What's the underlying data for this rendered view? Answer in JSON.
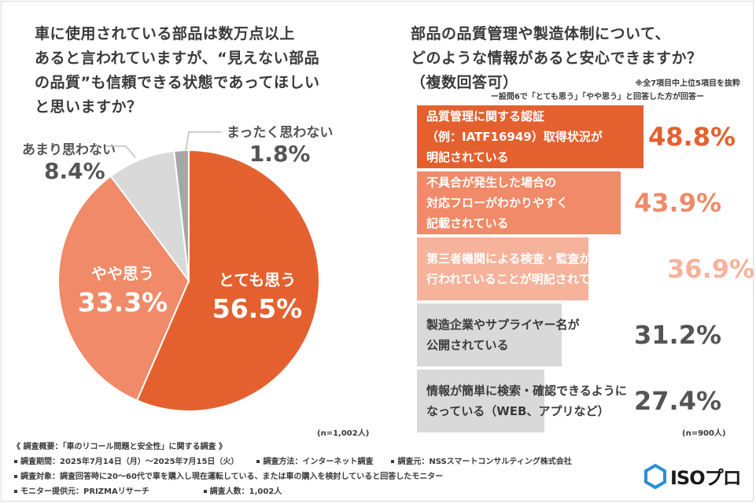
{
  "left_question": {
    "lines": [
      "車に使用されている部品は数万点以上",
      "あると言われていますが、“見えない部品",
      "の品質”も信頼できる状態であってほしい",
      "と思いますか？"
    ]
  },
  "right_question": {
    "lines": [
      "部品の品質管理や製造体制について、",
      "どのような情報があると安心できますか？"
    ],
    "multi": "（複数回答可）",
    "note1": "※全7項目中上位5項目を抜粋",
    "note2": "ー設問6で「とても思う」「やや思う」と回答した方が回答ー"
  },
  "colors": {
    "dark_orange": "#e4612f",
    "mid_orange": "#f08a68",
    "light_orange": "#f6b29b",
    "gray": "#d9d9d9",
    "dark_gray": "#a6a6a6",
    "text_dark": "#3a3a3a"
  },
  "chart_data": [
    {
      "type": "pie",
      "title": "",
      "slices": [
        {
          "label": "とても思う",
          "value": 56.5,
          "display": "56.5%",
          "color": "#e4612f"
        },
        {
          "label": "やや思う",
          "value": 33.3,
          "display": "33.3%",
          "color": "#f08a68"
        },
        {
          "label": "あまり思わない",
          "value": 8.4,
          "display": "8.4%",
          "color": "#d9d9d9"
        },
        {
          "label": "まったく思わない",
          "value": 1.8,
          "display": "1.8%",
          "color": "#a6a6a6"
        }
      ],
      "n_label": "(n=1,002人)"
    },
    {
      "type": "bar",
      "orientation": "horizontal",
      "title": "",
      "categories": [
        [
          "品質管理に関する認証",
          "（例：IATF16949）取得状況が",
          "明記されている"
        ],
        [
          "不具合が発生した場合の",
          "対応フローがわかりやすく",
          "記載されている"
        ],
        [
          "第三者機関による検査・監査が",
          "行われていることが明記されている"
        ],
        [
          "製造企業やサプライヤー名が",
          "公開されている"
        ],
        [
          "情報が簡単に検索・確認できるように",
          "なっている（WEB、アプリなど）"
        ]
      ],
      "values": [
        48.8,
        43.9,
        36.9,
        31.2,
        27.4
      ],
      "value_labels": [
        "48.8%",
        "43.9%",
        "36.9%",
        "31.2%",
        "27.4%"
      ],
      "bar_colors": [
        "#e4612f",
        "#f08a68",
        "#f6b29b",
        "#d9d9d9",
        "#d9d9d9"
      ],
      "label_colors": [
        "#ffffff",
        "#ffffff",
        "#ffffff",
        "#3a3a3a",
        "#3a3a3a"
      ],
      "value_colors": [
        "#e4612f",
        "#f08a68",
        "#f6b29b",
        "#555555",
        "#555555"
      ],
      "n_label": "(n=900人)"
    }
  ],
  "footer": {
    "title": "《 調査概要：「車のリコール問題と安全性」に関する調査 》",
    "period": "調査期間：2025年7月14日（月）〜2025年7月15日（火）",
    "method": "調査方法：インターネット調査",
    "source": "調査元：NSSスマートコンサルティング株式会社",
    "target": "調査対象：調査回答時に20〜60代で車を購入し現在運転している、または車の購入を検討していると回答したモニター",
    "provider": "モニター提供元：PRIZMAリサーチ",
    "count": "調査人数：1,002人"
  },
  "logo": {
    "text": "ISOプロ",
    "icon": "hexagon-logo-icon"
  }
}
